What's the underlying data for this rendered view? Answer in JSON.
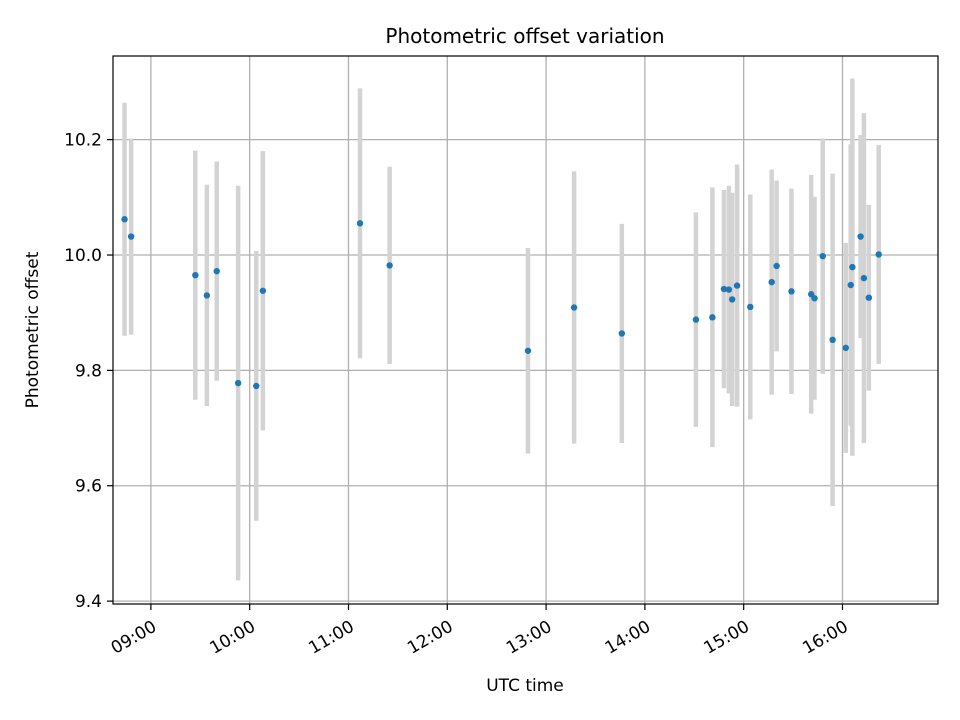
{
  "chart_data": {
    "type": "scatter",
    "title": "Photometric offset variation",
    "xlabel": "UTC time",
    "ylabel": "Photometric offset",
    "grid": true,
    "error_bars": true,
    "xlim": [
      "08:37",
      "16:58"
    ],
    "ylim": [
      9.395,
      10.345
    ],
    "x_ticks": [
      "09:00",
      "10:00",
      "11:00",
      "12:00",
      "13:00",
      "14:00",
      "15:00",
      "16:00"
    ],
    "y_ticks": [
      9.4,
      9.6,
      9.8,
      10.0,
      10.2
    ],
    "y_tick_labels": [
      "9.4",
      "9.6",
      "9.8",
      "10.0",
      "10.2"
    ],
    "colors": {
      "points": "#1f77b4",
      "error_bars": "#d3d3d3",
      "grid": "#b0b0b0"
    },
    "points": [
      {
        "x": "08:44",
        "y": 10.062,
        "err": 0.202
      },
      {
        "x": "08:48",
        "y": 10.032,
        "err": 0.17
      },
      {
        "x": "09:27",
        "y": 9.965,
        "err": 0.216
      },
      {
        "x": "09:34",
        "y": 9.93,
        "err": 0.192
      },
      {
        "x": "09:40",
        "y": 9.972,
        "err": 0.19
      },
      {
        "x": "09:53",
        "y": 9.778,
        "err": 0.342
      },
      {
        "x": "10:04",
        "y": 9.773,
        "err": 0.234
      },
      {
        "x": "10:08",
        "y": 9.938,
        "err": 0.242
      },
      {
        "x": "11:07",
        "y": 10.055,
        "err": 0.234
      },
      {
        "x": "11:25",
        "y": 9.982,
        "err": 0.171
      },
      {
        "x": "12:49",
        "y": 9.834,
        "err": 0.178
      },
      {
        "x": "13:17",
        "y": 9.909,
        "err": 0.236
      },
      {
        "x": "13:46",
        "y": 9.864,
        "err": 0.19
      },
      {
        "x": "14:31",
        "y": 9.888,
        "err": 0.186
      },
      {
        "x": "14:41",
        "y": 9.892,
        "err": 0.225
      },
      {
        "x": "14:48",
        "y": 9.941,
        "err": 0.172
      },
      {
        "x": "14:51",
        "y": 9.94,
        "err": 0.18
      },
      {
        "x": "14:53",
        "y": 9.923,
        "err": 0.185
      },
      {
        "x": "14:56",
        "y": 9.947,
        "err": 0.21
      },
      {
        "x": "15:04",
        "y": 9.91,
        "err": 0.195
      },
      {
        "x": "15:17",
        "y": 9.953,
        "err": 0.195
      },
      {
        "x": "15:20",
        "y": 9.981,
        "err": 0.148
      },
      {
        "x": "15:29",
        "y": 9.937,
        "err": 0.178
      },
      {
        "x": "15:41",
        "y": 9.932,
        "err": 0.207
      },
      {
        "x": "15:43",
        "y": 9.925,
        "err": 0.176
      },
      {
        "x": "15:48",
        "y": 9.998,
        "err": 0.204
      },
      {
        "x": "15:54",
        "y": 9.853,
        "err": 0.288
      },
      {
        "x": "16:02",
        "y": 9.839,
        "err": 0.182
      },
      {
        "x": "16:05",
        "y": 9.948,
        "err": 0.244
      },
      {
        "x": "16:06",
        "y": 9.979,
        "err": 0.327
      },
      {
        "x": "16:11",
        "y": 10.032,
        "err": 0.176
      },
      {
        "x": "16:13",
        "y": 9.96,
        "err": 0.286
      },
      {
        "x": "16:16",
        "y": 9.926,
        "err": 0.161
      },
      {
        "x": "16:22",
        "y": 10.001,
        "err": 0.19
      }
    ]
  }
}
